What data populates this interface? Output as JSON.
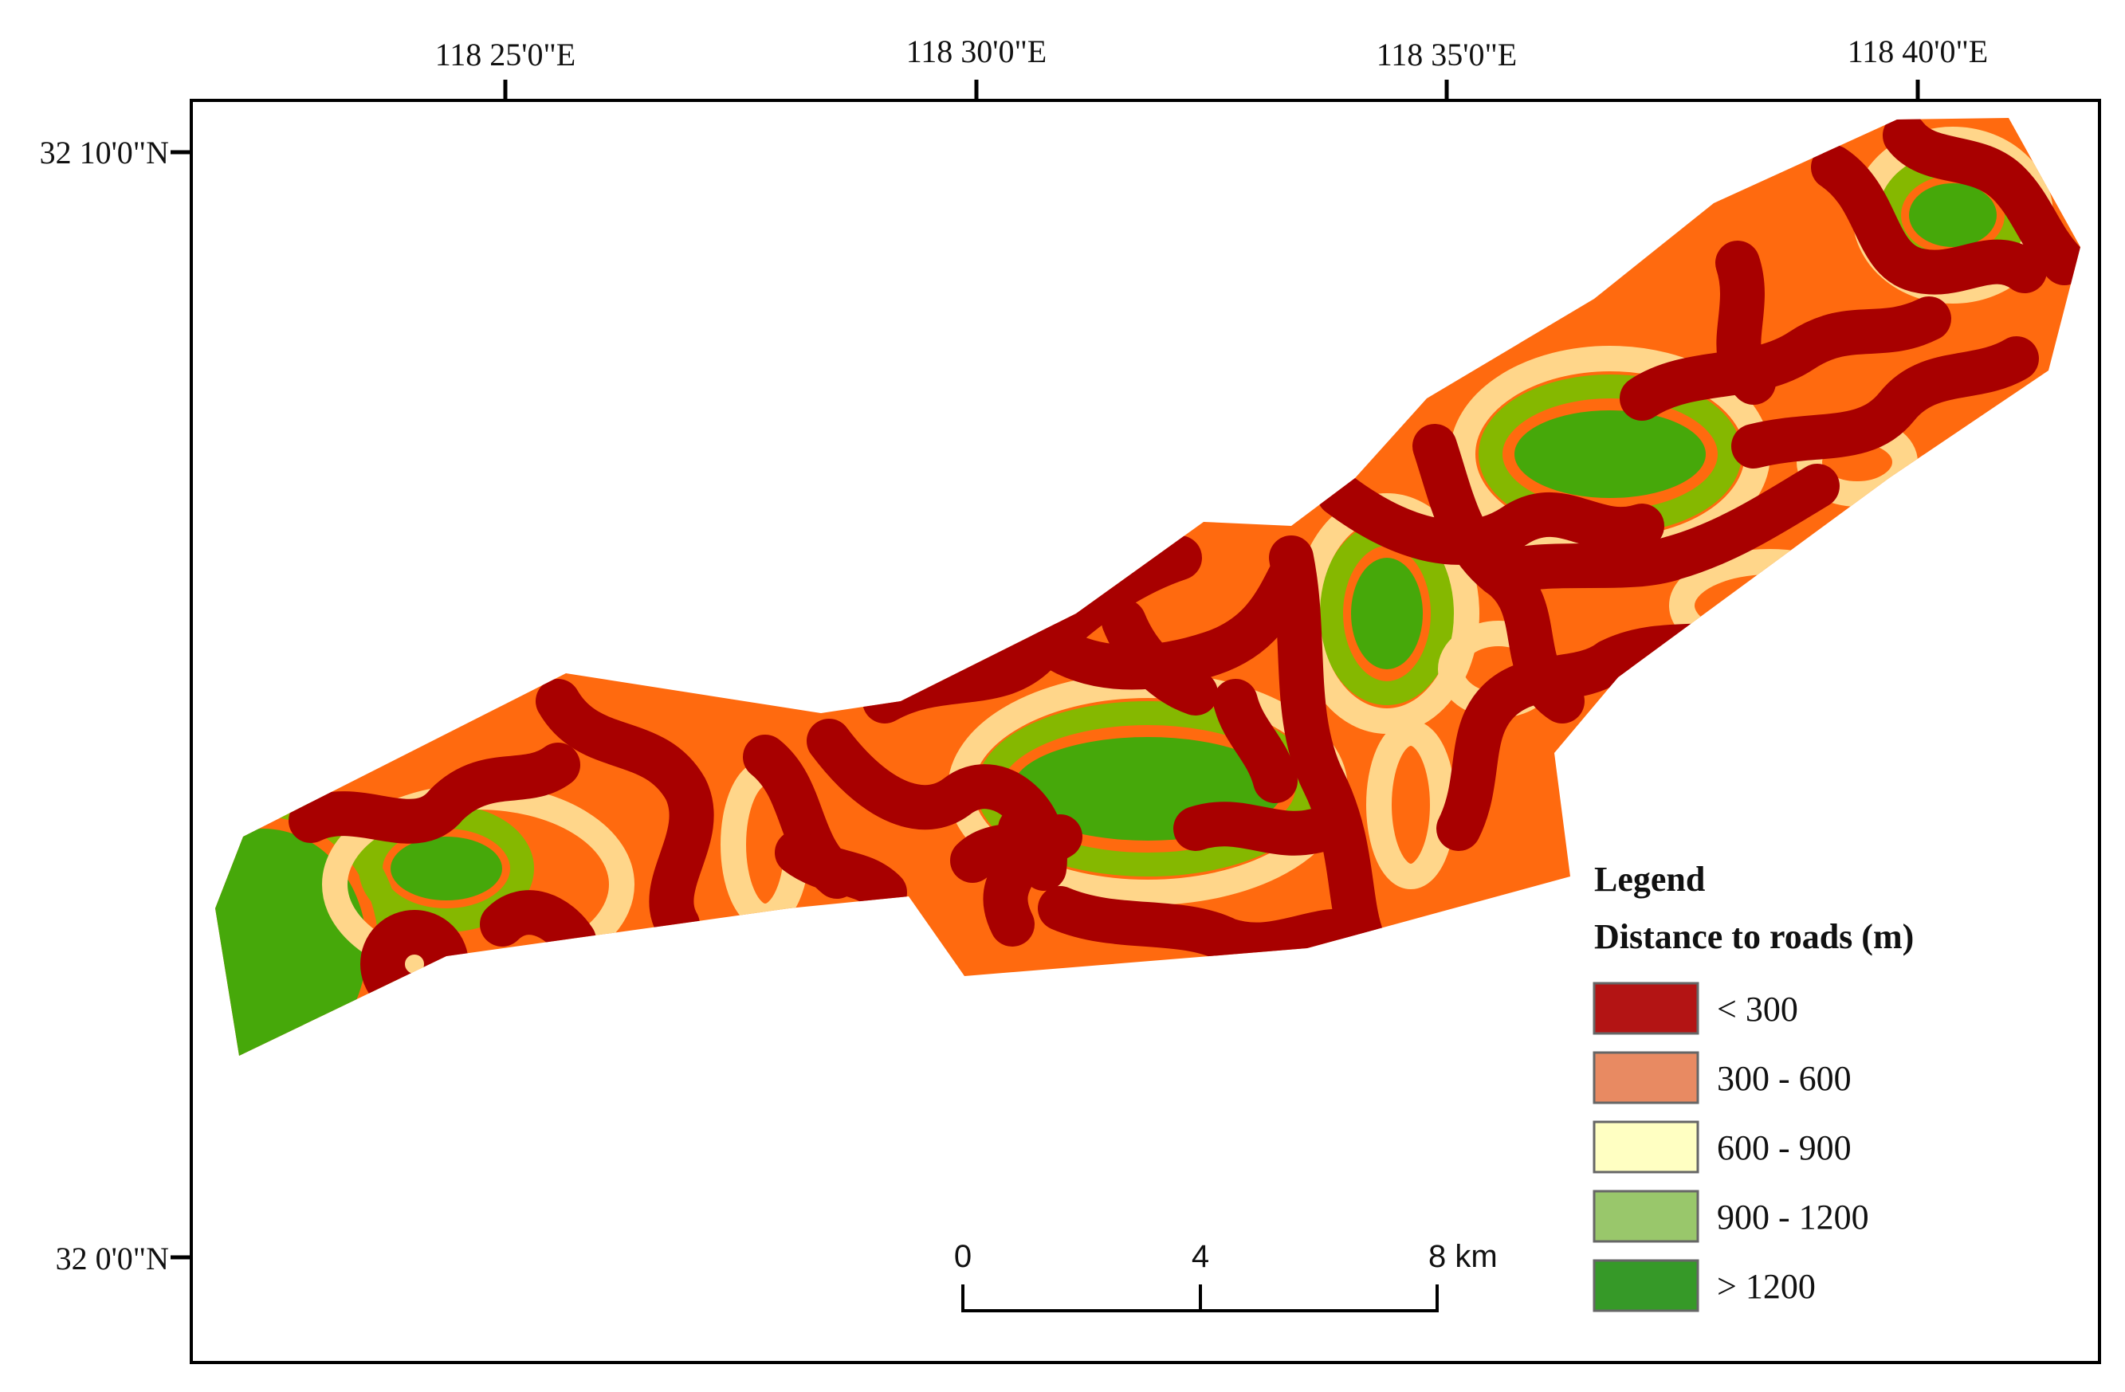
{
  "longitude_labels": [
    "118  25'0\"E",
    "118  30'0\"E",
    "118  35'0\"E",
    "118  40'0\"E"
  ],
  "latitude_labels": [
    "32  10'0\"N",
    "32  0'0\"N"
  ],
  "legend": {
    "title": "Legend",
    "subtitle": "Distance to roads (m)",
    "items": [
      {
        "label": "< 300",
        "color": "#b31414"
      },
      {
        "label": "300 - 600",
        "color": "#e88a62"
      },
      {
        "label": "600 - 900",
        "color": "#ffffc2"
      },
      {
        "label": "900 - 1200",
        "color": "#99c76b"
      },
      {
        "label": "> 1200",
        "color": "#369928"
      }
    ]
  },
  "scale_bar": {
    "labels": [
      "0",
      "4",
      "8 km"
    ]
  },
  "colors": {
    "zone_lt300": "#a80000",
    "zone_300_600": "#ff6a0f",
    "zone_600_900": "#ffd68a",
    "zone_900_1200": "#85b800",
    "zone_gt1200": "#46a80a"
  }
}
